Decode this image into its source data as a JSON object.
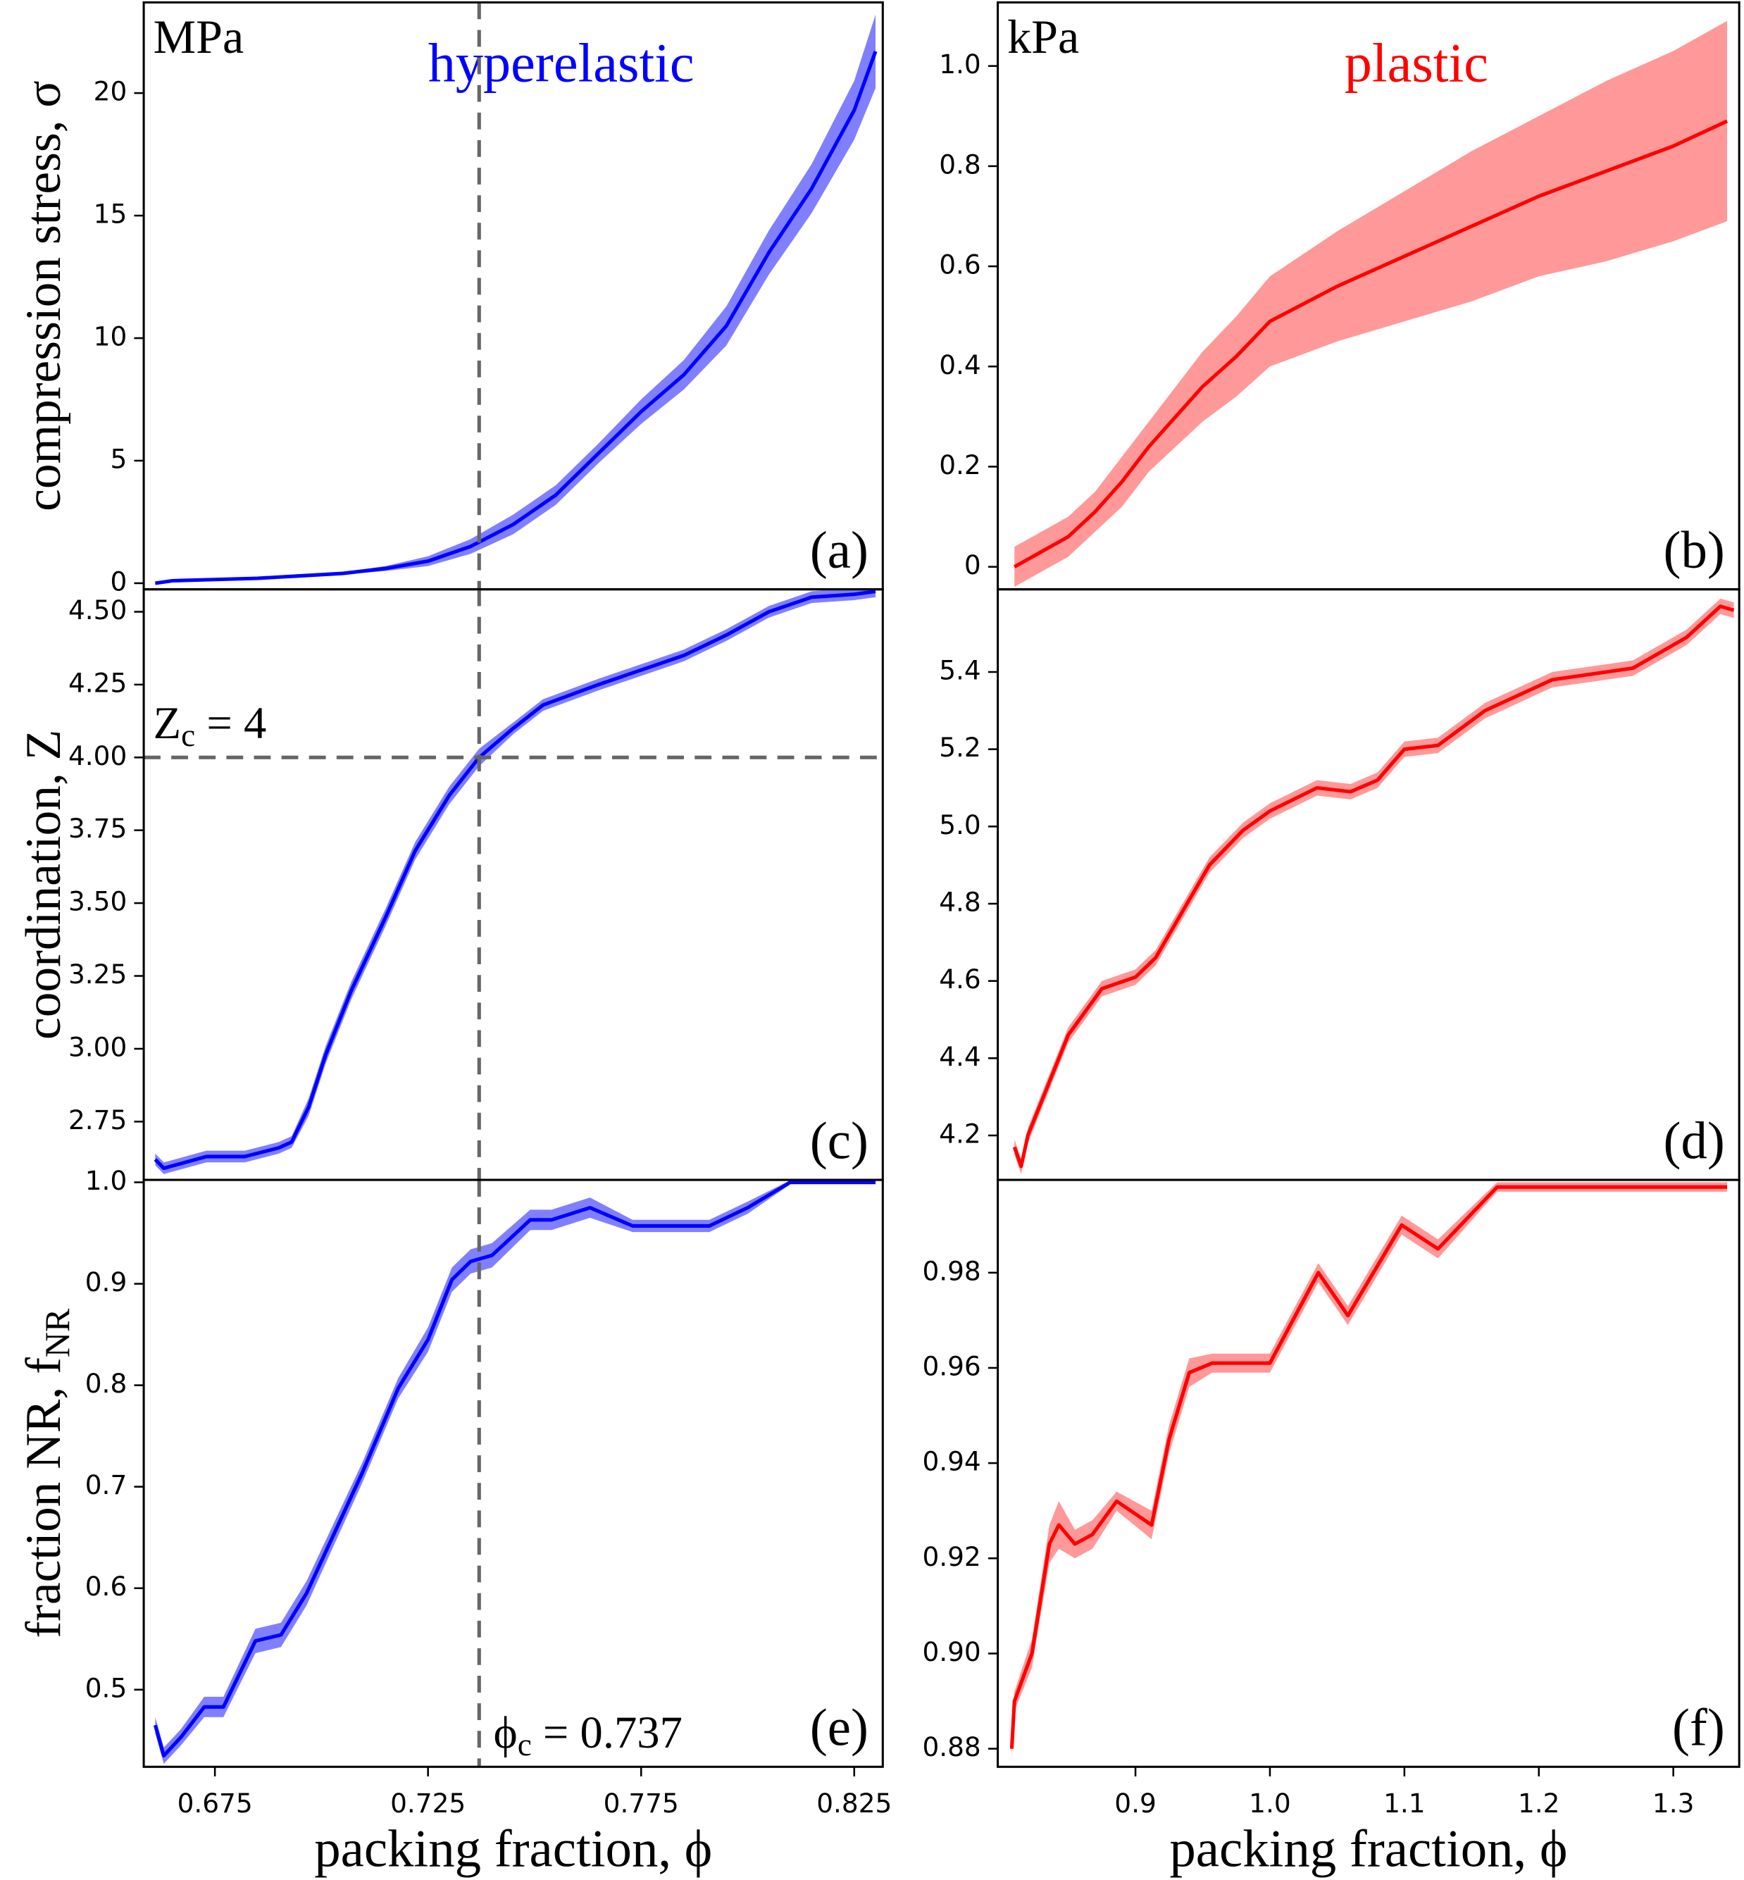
{
  "chart_data": [
    {
      "type": "line",
      "unit": "MPa",
      "panel_label": "(a)",
      "ylabel": [
        "compression stress, σ"
      ],
      "xlim": [
        0.6583,
        0.8317
      ],
      "ylim": [
        -0.25,
        23.7
      ],
      "yticks": [
        0,
        5,
        10,
        15,
        20
      ],
      "vline": 0.737,
      "x": [
        0.661,
        0.665,
        0.675,
        0.685,
        0.695,
        0.705,
        0.715,
        0.725,
        0.735,
        0.745,
        0.755,
        0.765,
        0.775,
        0.785,
        0.795,
        0.805,
        0.815,
        0.825,
        0.83
      ],
      "series": [
        {
          "name": "hyperelastic",
          "color": "#0000ff",
          "band_color": "#8080ff",
          "values": [
            0.0,
            0.1,
            0.15,
            0.2,
            0.3,
            0.4,
            0.6,
            0.9,
            1.5,
            2.4,
            3.6,
            5.3,
            7.0,
            8.5,
            10.5,
            13.5,
            16.1,
            19.3,
            21.7
          ],
          "errors": [
            0.05,
            0.05,
            0.05,
            0.05,
            0.05,
            0.05,
            0.1,
            0.2,
            0.3,
            0.4,
            0.4,
            0.4,
            0.5,
            0.6,
            0.8,
            0.9,
            1.0,
            1.2,
            1.5
          ]
        }
      ]
    },
    {
      "type": "line",
      "unit": "kPa",
      "panel_label": "(b)",
      "xlim": [
        0.7976,
        1.349
      ],
      "ylim": [
        -0.045,
        1.127
      ],
      "yticks": [
        0,
        0.2,
        0.4,
        0.6,
        0.8,
        {
          "value": 1,
          "label": "1.0"
        }
      ],
      "x": [
        0.81,
        0.83,
        0.85,
        0.87,
        0.89,
        0.91,
        0.93,
        0.95,
        0.975,
        1.0,
        1.05,
        1.1,
        1.15,
        1.2,
        1.25,
        1.3,
        1.34
      ],
      "series": [
        {
          "name": "plastic",
          "color": "#ff0000",
          "band_color": "#ff9999",
          "values": [
            0.0,
            0.03,
            0.06,
            0.11,
            0.17,
            0.24,
            0.3,
            0.36,
            0.42,
            0.49,
            0.56,
            0.62,
            0.68,
            0.74,
            0.79,
            0.84,
            0.89
          ],
          "errors": [
            0.04,
            0.04,
            0.04,
            0.04,
            0.05,
            0.05,
            0.06,
            0.07,
            0.08,
            0.09,
            0.11,
            0.13,
            0.15,
            0.16,
            0.18,
            0.19,
            0.2
          ]
        }
      ]
    },
    {
      "type": "line",
      "panel_label": "(c)",
      "ylabel": [
        "coordination, Z"
      ],
      "ref_label": [
        "Z",
        "c",
        " = 4"
      ],
      "xlim": [
        0.6583,
        0.8317
      ],
      "ylim": [
        2.55,
        4.577
      ],
      "yticks": [
        2.75,
        {
          "value": 3,
          "label": "3.00"
        },
        3.25,
        {
          "value": 3.5,
          "label": "3.50"
        },
        3.75,
        {
          "value": 4,
          "label": "4.00"
        },
        4.25,
        {
          "value": 4.5,
          "label": "4.50"
        }
      ],
      "vline": 0.737,
      "hline": 4,
      "x": [
        0.661,
        0.663,
        0.673,
        0.682,
        0.69,
        0.693,
        0.697,
        0.701,
        0.707,
        0.715,
        0.722,
        0.73,
        0.737,
        0.745,
        0.752,
        0.765,
        0.775,
        0.785,
        0.795,
        0.805,
        0.815,
        0.825,
        0.83
      ],
      "series": [
        {
          "color": "#0000ff",
          "band_color": "#8080ff",
          "values": [
            2.62,
            2.59,
            2.63,
            2.63,
            2.66,
            2.68,
            2.8,
            2.98,
            3.2,
            3.45,
            3.68,
            3.87,
            4.0,
            4.1,
            4.18,
            4.25,
            4.3,
            4.35,
            4.42,
            4.5,
            4.55,
            4.56,
            4.57
          ],
          "errors": [
            0.02,
            0.02,
            0.02,
            0.02,
            0.02,
            0.02,
            0.03,
            0.03,
            0.03,
            0.03,
            0.03,
            0.03,
            0.03,
            0.02,
            0.02,
            0.02,
            0.02,
            0.02,
            0.02,
            0.02,
            0.02,
            0.02,
            0.02
          ]
        }
      ]
    },
    {
      "type": "line",
      "panel_label": "(d)",
      "xlim": [
        0.7976,
        1.349
      ],
      "ylim": [
        4.085,
        5.614
      ],
      "yticks": [
        4.2,
        4.4,
        4.6,
        4.8,
        {
          "value": 5,
          "label": "5.0"
        },
        5.2,
        5.4
      ],
      "x": [
        0.81,
        0.815,
        0.82,
        0.835,
        0.85,
        0.875,
        0.9,
        0.915,
        0.935,
        0.955,
        0.98,
        1.0,
        1.035,
        1.06,
        1.08,
        1.1,
        1.125,
        1.16,
        1.21,
        1.27,
        1.31,
        1.335,
        1.345
      ],
      "series": [
        {
          "color": "#ff0000",
          "band_color": "#ff9999",
          "values": [
            4.17,
            4.12,
            4.2,
            4.33,
            4.46,
            4.58,
            4.61,
            4.66,
            4.78,
            4.9,
            4.99,
            5.04,
            5.1,
            5.09,
            5.12,
            5.2,
            5.21,
            5.3,
            5.38,
            5.41,
            5.49,
            5.57,
            5.56
          ],
          "errors": [
            0.02,
            0.02,
            0.02,
            0.02,
            0.02,
            0.02,
            0.02,
            0.02,
            0.02,
            0.02,
            0.02,
            0.02,
            0.02,
            0.02,
            0.02,
            0.02,
            0.02,
            0.02,
            0.02,
            0.02,
            0.02,
            0.02,
            0.02
          ]
        }
      ]
    },
    {
      "type": "line",
      "panel_label": "(e)",
      "ylabel": [
        "fraction NR, f",
        "NR"
      ],
      "xlabel": "packing fraction, ϕ",
      "ref_label": [
        "ϕ",
        "c",
        " = 0.737"
      ],
      "xlim": [
        0.6583,
        0.8317
      ],
      "ylim": [
        0.424,
        1.0024
      ],
      "xticks": [
        0.675,
        0.725,
        0.775,
        0.825
      ],
      "yticks": [
        0.5,
        0.6,
        0.7,
        0.8,
        0.9,
        {
          "value": 1,
          "label": "1.0"
        }
      ],
      "vline": 0.737,
      "x": [
        0.661,
        0.663,
        0.667,
        0.6725,
        0.677,
        0.6845,
        0.6905,
        0.6965,
        0.7096,
        0.718,
        0.725,
        0.7306,
        0.735,
        0.74,
        0.749,
        0.754,
        0.763,
        0.773,
        0.791,
        0.8,
        0.81,
        0.83
      ],
      "series": [
        {
          "color": "#0000ff",
          "band_color": "#8080ff",
          "values": [
            0.465,
            0.435,
            0.453,
            0.483,
            0.483,
            0.548,
            0.554,
            0.595,
            0.714,
            0.797,
            0.845,
            0.904,
            0.922,
            0.928,
            0.963,
            0.963,
            0.975,
            0.957,
            0.957,
            0.975,
            1.0,
            1.0
          ],
          "errors": [
            0.008,
            0.008,
            0.008,
            0.01,
            0.01,
            0.012,
            0.012,
            0.012,
            0.01,
            0.01,
            0.012,
            0.012,
            0.012,
            0.012,
            0.01,
            0.01,
            0.01,
            0.006,
            0.006,
            0.006,
            0.002,
            0.002
          ]
        }
      ]
    },
    {
      "type": "line",
      "panel_label": "(f)",
      "xlabel": "packing fraction, ϕ",
      "xlim": [
        0.7976,
        1.349
      ],
      "ylim": [
        0.8762,
        0.9995
      ],
      "xticks": [
        0.9,
        {
          "value": 1,
          "label": "1.0"
        },
        1.1,
        1.2,
        1.3
      ],
      "yticks": [
        0.88,
        {
          "value": 0.9,
          "label": "0.90"
        },
        0.92,
        0.94,
        0.96,
        0.98
      ],
      "x": [
        0.808,
        0.81,
        0.823,
        0.836,
        0.843,
        0.855,
        0.868,
        0.886,
        0.912,
        0.925,
        0.94,
        0.957,
        1.0,
        1.036,
        1.058,
        1.098,
        1.125,
        1.169,
        1.34
      ],
      "series": [
        {
          "color": "#ff0000",
          "band_color": "#ff9999",
          "values": [
            0.88,
            0.89,
            0.9,
            0.923,
            0.927,
            0.923,
            0.925,
            0.932,
            0.927,
            0.945,
            0.959,
            0.961,
            0.961,
            0.98,
            0.971,
            0.99,
            0.985,
            0.998,
            0.998
          ],
          "errors": [
            0.002,
            0.002,
            0.003,
            0.004,
            0.005,
            0.003,
            0.003,
            0.002,
            0.003,
            0.003,
            0.003,
            0.002,
            0.002,
            0.002,
            0.002,
            0.002,
            0.002,
            0.001,
            0.001
          ]
        }
      ]
    }
  ]
}
